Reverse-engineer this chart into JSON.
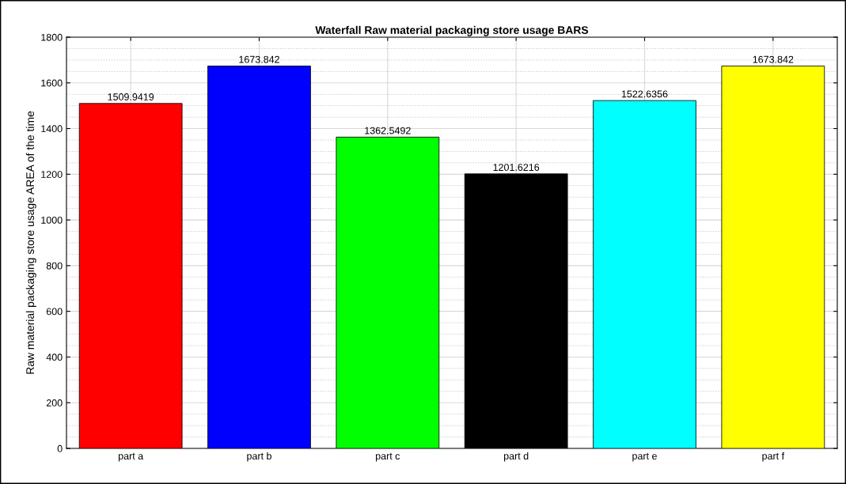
{
  "chart_data": {
    "type": "bar",
    "title": "Waterfall Raw material packaging store usage BARS",
    "ylabel": "Raw material packaging store usage AREA of the time",
    "categories": [
      "part a",
      "part b",
      "part c",
      "part d",
      "part e",
      "part f"
    ],
    "values": [
      1509.9419,
      1673.842,
      1362.5492,
      1201.6216,
      1522.6356,
      1673.842
    ],
    "colors": [
      "#ff0000",
      "#0000ff",
      "#00ff00",
      "#000000",
      "#00ffff",
      "#ffff00"
    ],
    "ylim": [
      0,
      1800
    ],
    "yticks": [
      0,
      200,
      400,
      600,
      800,
      1000,
      1200,
      1400,
      1600,
      1800
    ],
    "grid": true,
    "data_labels": true
  }
}
